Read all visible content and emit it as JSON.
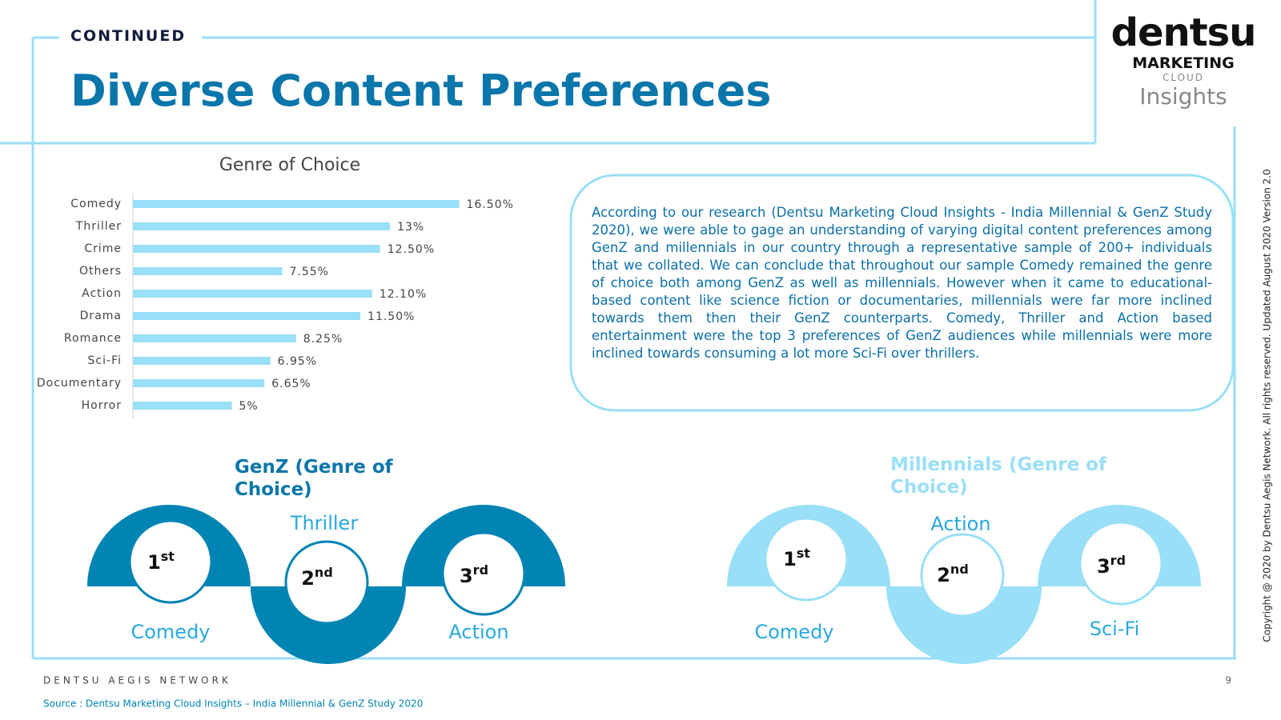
{
  "header": {
    "label": "CONTINUED",
    "title": "Diverse Content Preferences"
  },
  "logo": {
    "brand": "dentsu",
    "line1": "MARKETING",
    "line2": "CLOUD",
    "line3": "Insights"
  },
  "chart_data": {
    "type": "hbar",
    "title": "Genre of Choice",
    "categories": [
      "Comedy",
      "Thriller",
      "Crime",
      "Others",
      "Action",
      "Drama",
      "Romance",
      "Sci-Fi",
      "Documentary",
      "Horror"
    ],
    "values": [
      16.5,
      13,
      12.5,
      7.55,
      12.1,
      11.5,
      8.25,
      6.95,
      6.65,
      5
    ],
    "value_labels": [
      "16.50%",
      "13%",
      "12.50%",
      "7.55%",
      "12.10%",
      "11.50%",
      "8.25%",
      "6.95%",
      "6.65%",
      "5%"
    ],
    "color": "#99dff7",
    "xlim": [
      0,
      20
    ]
  },
  "summary": "According to our research (Dentsu Marketing Cloud Insights - India Millennial & GenZ Study 2020), we were able to gage an understanding of varying digital content preferences among GenZ and millennials in our country through a representative sample of 200+ individuals that we collated. We can conclude that throughout our sample Comedy remained the genre of choice both among GenZ as well as millennials. However when it came to educational-based content like science fiction or documentaries, millennials were far more inclined towards them then their GenZ counterparts. Comedy, Thriller and Action based entertainment were the top 3 preferences of GenZ audiences while millennials were more inclined towards consuming a lot more Sci-Fi over thrillers.",
  "ranks": [
    {
      "number": "1",
      "suffix": "st"
    },
    {
      "number": "2",
      "suffix": "nd"
    },
    {
      "number": "3",
      "suffix": "rd"
    }
  ],
  "genz": {
    "heading": "GenZ (Genre of Choice)",
    "genres": [
      "Comedy",
      "Thriller",
      "Action"
    ]
  },
  "millennials": {
    "heading": "Millennials (Genre of Choice)",
    "genres": [
      "Comedy",
      "Action",
      "Sci-Fi"
    ]
  },
  "footer": {
    "network": "DENTSU AEGIS NETWORK",
    "page": "9",
    "source": "Source : Dentsu Marketing Cloud Insights – India Millennial & GenZ Study 2020",
    "copyright": "Copyright @ 2020 by Dentsu Aegis Network. All rights reserved. Updated August 2020 Version 2.0"
  }
}
